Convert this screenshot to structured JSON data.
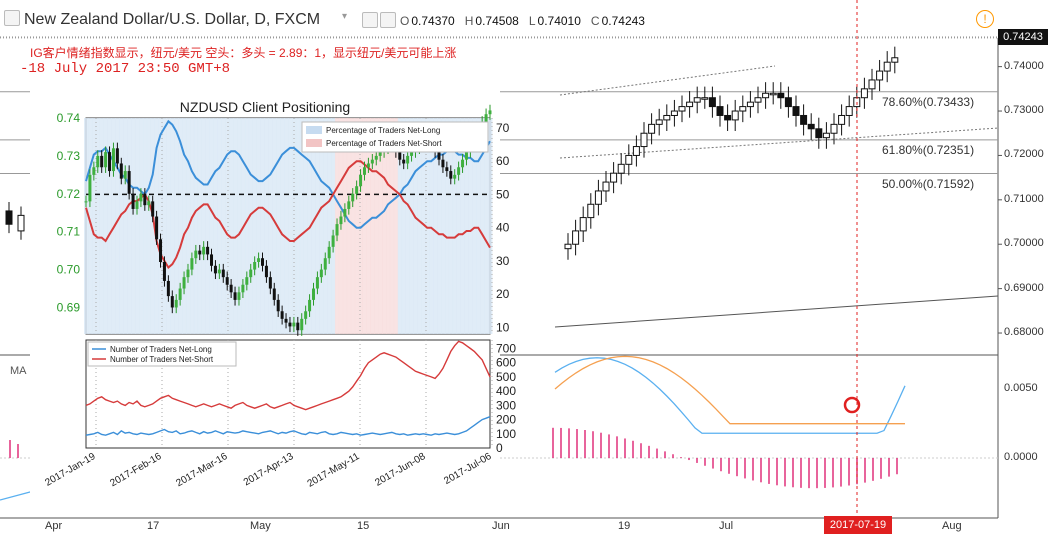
{
  "header": {
    "symbol_title": "New Zealand Dollar/U.S. Dollar, D, FXCM",
    "ohlc": [
      {
        "key": "O",
        "value": "0.74370"
      },
      {
        "key": "H",
        "value": "0.74508"
      },
      {
        "key": "L",
        "value": "0.74010"
      },
      {
        "key": "C",
        "value": "0.74243"
      }
    ],
    "last_price": "0.74243",
    "sentiment_note": "IG客户情绪指数显示，纽元/美元 空头：多头 = 2.89：1，显示纽元/美元可能上涨",
    "note_date": "-18 July 2017 23:50 GMT+8",
    "ma_label": "MA"
  },
  "main_axis": {
    "price_ticks": [
      "0.74000",
      "0.73000",
      "0.72000",
      "0.71000",
      "0.70000",
      "0.69000",
      "0.68000"
    ],
    "osc_ticks": [
      "0.0050",
      "0.0000"
    ],
    "date_ticks": [
      "Apr",
      "17",
      "May",
      "15",
      "Jun",
      "19",
      "Jul",
      "Aug"
    ],
    "cursor_date": "2017-07-19"
  },
  "fib_levels": [
    {
      "label": "78.60%(0.73433)",
      "value": 0.73433
    },
    {
      "label": "61.80%(0.72351)",
      "value": 0.72351
    },
    {
      "label": "50.00%(0.71592)",
      "value": 0.71592
    }
  ],
  "colors": {
    "long": "#3b8fd9",
    "short": "#d63b3b",
    "cursor": "#e02020",
    "accent_warning": "#ff9800",
    "candle_up": "#ffffff",
    "candle_down": "#111111",
    "green_axis": "#2a9a2a"
  },
  "chart_data": [
    {
      "type": "line",
      "title": "NZDUSD Client Positioning",
      "left_axis_ticks": [
        "0.74",
        "0.73",
        "0.72",
        "0.71",
        "0.70",
        "0.69"
      ],
      "right_axis_ticks": [
        "70",
        "60",
        "50",
        "40",
        "30",
        "20",
        "10"
      ],
      "x_tick_labels": [
        "2017-Jan-19",
        "2017-Feb-16",
        "2017-Mar-16",
        "2017-Apr-13",
        "2017-May-11",
        "2017-Jun-08",
        "2017-Jul-06"
      ],
      "ylim_price": [
        0.683,
        0.74
      ],
      "ylim_pct": [
        8,
        73
      ],
      "series": [
        {
          "name": "Percentage of Traders Net-Long",
          "values": [
            54,
            58,
            62,
            63,
            63,
            64,
            62,
            60,
            58,
            56,
            55,
            53,
            52,
            52,
            51,
            50,
            52,
            56,
            64,
            68,
            70,
            72,
            71,
            69,
            66,
            62,
            60,
            57,
            55,
            54,
            53,
            53,
            55,
            57,
            58,
            60,
            62,
            63,
            63,
            62,
            60,
            58,
            56,
            55,
            54,
            54,
            55,
            56,
            58,
            60,
            62,
            63,
            64,
            64,
            63,
            62,
            61,
            60,
            58,
            56,
            54,
            53,
            52,
            50,
            48,
            46,
            44,
            42,
            41,
            40,
            40,
            41,
            42,
            43,
            43,
            44,
            45,
            47,
            48,
            49,
            50,
            52,
            53,
            55,
            57,
            58,
            59,
            60,
            60,
            61,
            62,
            62,
            63,
            63,
            63,
            62,
            62,
            61,
            61,
            60,
            60,
            62,
            64,
            66
          ]
        },
        {
          "name": "Percentage of Traders Net-Short",
          "values": [
            46,
            42,
            38,
            37,
            37,
            36,
            38,
            40,
            42,
            44,
            45,
            47,
            48,
            48,
            49,
            50,
            48,
            44,
            36,
            32,
            30,
            28,
            29,
            31,
            34,
            38,
            40,
            43,
            45,
            46,
            47,
            47,
            45,
            43,
            42,
            40,
            38,
            37,
            37,
            38,
            40,
            42,
            44,
            45,
            46,
            46,
            45,
            44,
            42,
            40,
            38,
            37,
            36,
            36,
            37,
            38,
            39,
            40,
            42,
            44,
            46,
            47,
            48,
            50,
            52,
            54,
            56,
            58,
            59,
            60,
            60,
            59,
            58,
            57,
            57,
            56,
            55,
            53,
            52,
            51,
            50,
            48,
            47,
            45,
            43,
            42,
            41,
            40,
            40,
            39,
            38,
            38,
            37,
            37,
            37,
            38,
            38,
            39,
            39,
            40,
            40,
            38,
            36,
            34
          ]
        }
      ],
      "price_series": {
        "name": "NZDUSD daily",
        "values": [
          0.718,
          0.725,
          0.727,
          0.73,
          0.727,
          0.731,
          0.726,
          0.732,
          0.728,
          0.724,
          0.726,
          0.72,
          0.716,
          0.718,
          0.72,
          0.717,
          0.718,
          0.714,
          0.708,
          0.702,
          0.697,
          0.693,
          0.69,
          0.692,
          0.695,
          0.698,
          0.7,
          0.703,
          0.705,
          0.704,
          0.706,
          0.704,
          0.701,
          0.699,
          0.7,
          0.698,
          0.696,
          0.694,
          0.692,
          0.694,
          0.696,
          0.698,
          0.7,
          0.702,
          0.703,
          0.701,
          0.698,
          0.695,
          0.692,
          0.689,
          0.687,
          0.686,
          0.685,
          0.686,
          0.684,
          0.687,
          0.689,
          0.692,
          0.695,
          0.698,
          0.7,
          0.703,
          0.706,
          0.709,
          0.712,
          0.714,
          0.716,
          0.718,
          0.72,
          0.722,
          0.725,
          0.727,
          0.728,
          0.729,
          0.73,
          0.731,
          0.732,
          0.733,
          0.733,
          0.731,
          0.729,
          0.728,
          0.73,
          0.731,
          0.732,
          0.733,
          0.734,
          0.734,
          0.733,
          0.731,
          0.729,
          0.727,
          0.726,
          0.724,
          0.725,
          0.727,
          0.729,
          0.731,
          0.733,
          0.735,
          0.737,
          0.739,
          0.741,
          0.742
        ]
      },
      "legend": [
        "Percentage of Traders Net-Long",
        "Percentage of Traders Net-Short"
      ]
    },
    {
      "type": "line",
      "ylim": [
        0,
        760
      ],
      "right_axis_ticks": [
        "700",
        "600",
        "500",
        "400",
        "300",
        "200",
        "100",
        "0"
      ],
      "legend": [
        "Number of Traders Net-Long",
        "Number of Traders Net-Short"
      ],
      "series": [
        {
          "name": "Number of Traders Net-Long",
          "values": [
            90,
            95,
            100,
            110,
            95,
            90,
            100,
            110,
            95,
            120,
            105,
            110,
            100,
            95,
            105,
            100,
            95,
            100,
            110,
            120,
            130,
            115,
            110,
            120,
            100,
            105,
            115,
            120,
            110,
            100,
            115,
            105,
            110,
            120,
            110,
            100,
            115,
            110,
            105,
            110,
            120,
            115,
            110,
            105,
            100,
            110,
            115,
            120,
            110,
            100,
            110,
            105,
            115,
            120,
            110,
            100,
            95,
            110,
            105,
            100,
            110,
            115,
            100,
            95,
            100,
            110,
            105,
            100,
            95,
            100,
            90,
            95,
            100,
            105,
            100,
            95,
            100,
            105,
            110,
            100,
            95,
            100,
            90,
            95,
            100,
            95,
            100,
            95,
            90,
            100,
            95,
            100,
            105,
            100,
            95,
            100,
            110,
            120,
            140,
            160,
            180,
            200,
            210,
            220
          ]
        },
        {
          "name": "Number of Traders Net-Short",
          "values": [
            300,
            310,
            330,
            350,
            360,
            340,
            330,
            320,
            330,
            310,
            300,
            320,
            310,
            330,
            300,
            290,
            300,
            310,
            330,
            350,
            360,
            370,
            350,
            340,
            330,
            320,
            310,
            300,
            290,
            300,
            310,
            300,
            290,
            300,
            310,
            300,
            290,
            280,
            300,
            310,
            320,
            300,
            290,
            280,
            290,
            300,
            310,
            290,
            280,
            290,
            300,
            310,
            320,
            300,
            290,
            280,
            270,
            280,
            290,
            300,
            310,
            320,
            330,
            340,
            350,
            360,
            380,
            400,
            430,
            470,
            510,
            560,
            600,
            620,
            640,
            660,
            670,
            660,
            650,
            640,
            620,
            600,
            580,
            560,
            540,
            530,
            520,
            510,
            500,
            490,
            520,
            560,
            620,
            680,
            720,
            750,
            740,
            720,
            700,
            680,
            650,
            620,
            560,
            500
          ]
        }
      ]
    }
  ]
}
